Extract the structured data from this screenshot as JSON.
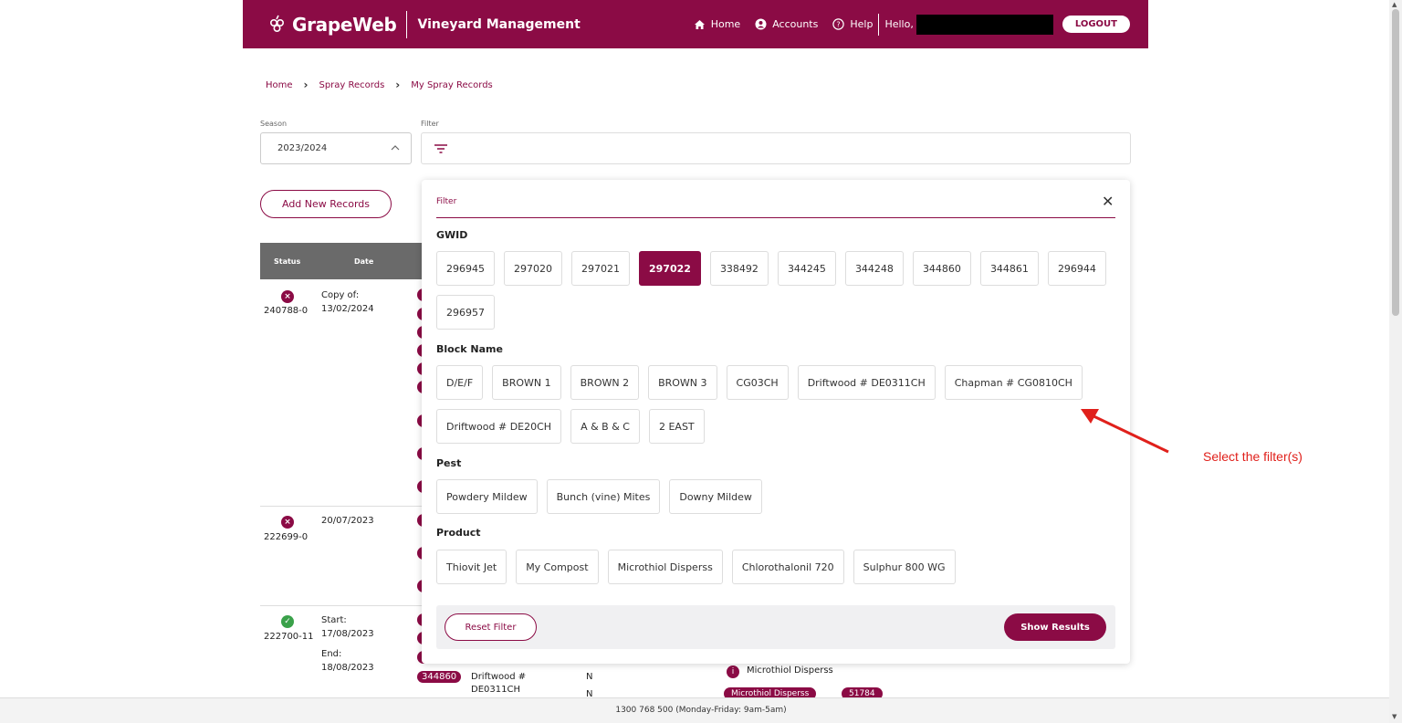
{
  "header": {
    "logo_text": "GrapeWeb",
    "app_title": "Vineyard Management",
    "nav": [
      {
        "label": "Home",
        "icon": "home-icon"
      },
      {
        "label": "Accounts",
        "icon": "user-circle-icon"
      },
      {
        "label": "Help",
        "icon": "help-circle-icon"
      }
    ],
    "hello": "Hello,",
    "logout": "LOGOUT",
    "brand_color": "#8b0b45"
  },
  "breadcrumb": [
    "Home",
    "Spray Records",
    "My Spray Records"
  ],
  "season": {
    "label": "Season",
    "value": "2023/2024"
  },
  "filter": {
    "label": "Filter"
  },
  "add_button": "Add New Records",
  "table": {
    "headers": [
      "Status",
      "Date"
    ],
    "rows": [
      {
        "id": "240788-0",
        "date_lines": [
          "Copy of:",
          "13/02/2024"
        ],
        "status": "rejected"
      },
      {
        "id": "222699-0",
        "date_lines": [
          "20/07/2023"
        ],
        "status": "rejected"
      },
      {
        "id": "222700-11",
        "date_lines": [
          "Start:",
          "17/08/2023",
          "End:",
          "18/08/2023"
        ],
        "status": "approved"
      }
    ],
    "behind": {
      "gwid_pill": "344860",
      "block": "Driftwood #",
      "block2": "DE0311CH",
      "flag1": "N",
      "flag2": "N",
      "product": "Microthiol Disperss",
      "product_pill": "Microthiol Disperss",
      "number_pill": "51784"
    }
  },
  "panel": {
    "label": "Filter",
    "sections": {
      "gwid": {
        "title": "GWID",
        "options": [
          "296945",
          "297020",
          "297021",
          "297022",
          "338492",
          "344245",
          "344248",
          "344860",
          "344861",
          "296944",
          "296957"
        ],
        "selected": "297022"
      },
      "block": {
        "title": "Block Name",
        "options": [
          "D/E/F",
          "BROWN 1",
          "BROWN 2",
          "BROWN 3",
          "CG03CH",
          "Driftwood # DE0311CH",
          "Chapman # CG0810CH",
          "Driftwood # DE20CH",
          "A & B & C",
          "2 EAST"
        ]
      },
      "pest": {
        "title": "Pest",
        "options": [
          "Powdery Mildew",
          "Bunch (vine) Mites",
          "Downy Mildew"
        ]
      },
      "product": {
        "title": "Product",
        "options": [
          "Thiovit Jet",
          "My Compost",
          "Microthiol Disperss",
          "Chlorothalonil 720",
          "Sulphur 800 WG"
        ]
      }
    },
    "reset": "Reset Filter",
    "show": "Show Results"
  },
  "annotation": "Select the filter(s)",
  "footer": "1300 768 500 (Monday-Friday: 9am-5am)"
}
